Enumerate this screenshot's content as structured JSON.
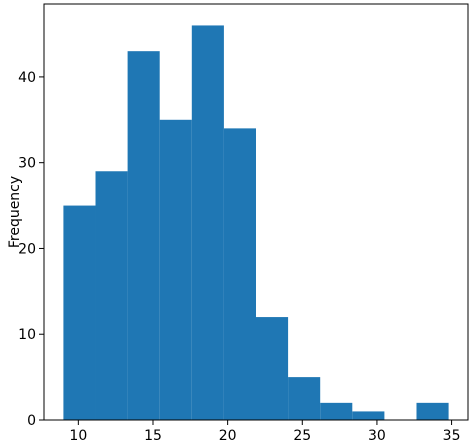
{
  "chart_data": {
    "type": "bar",
    "histogram": true,
    "bins": [
      {
        "x0": 9.0,
        "x1": 11.15,
        "count": 25
      },
      {
        "x0": 11.15,
        "x1": 13.3,
        "count": 29
      },
      {
        "x0": 13.3,
        "x1": 15.45,
        "count": 43
      },
      {
        "x0": 15.45,
        "x1": 17.6,
        "count": 35
      },
      {
        "x0": 17.6,
        "x1": 19.75,
        "count": 46
      },
      {
        "x0": 19.75,
        "x1": 21.9,
        "count": 34
      },
      {
        "x0": 21.9,
        "x1": 24.05,
        "count": 12
      },
      {
        "x0": 24.05,
        "x1": 26.2,
        "count": 5
      },
      {
        "x0": 26.2,
        "x1": 28.35,
        "count": 2
      },
      {
        "x0": 28.35,
        "x1": 30.5,
        "count": 1
      },
      {
        "x0": 30.5,
        "x1": 32.65,
        "count": 0
      },
      {
        "x0": 32.65,
        "x1": 34.8,
        "count": 2
      }
    ],
    "xlim": [
      7.7,
      36.1
    ],
    "ylim": [
      0,
      48.5
    ],
    "xticks": [
      "10",
      "15",
      "20",
      "25",
      "30",
      "35"
    ],
    "yticks": [
      "0",
      "10",
      "20",
      "30",
      "40"
    ],
    "xlabel": "",
    "ylabel": "Frequency",
    "title": "",
    "grid": false,
    "bar_color": "#1f77b4"
  }
}
